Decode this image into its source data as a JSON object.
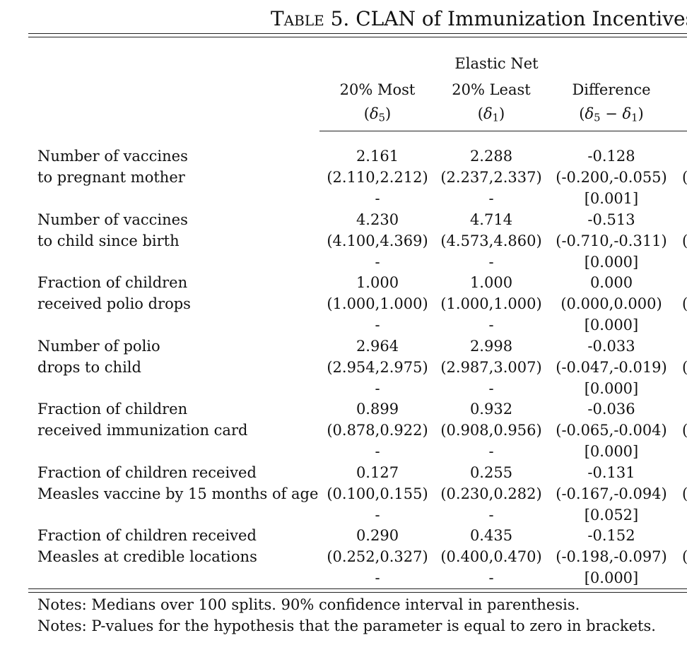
{
  "title": {
    "label": "Table 5.",
    "text": "CLAN of Immunization Incentives"
  },
  "header": {
    "group": "Elastic Net",
    "columns": [
      {
        "label": "20% Most",
        "delta": "δ",
        "sub": "5",
        "extra": ""
      },
      {
        "label": "20% Least",
        "delta": "δ",
        "sub": "1",
        "extra": ""
      },
      {
        "label": "Difference",
        "delta": "δ",
        "sub": "5",
        "extra": "δ",
        "extra_sub": "1"
      }
    ]
  },
  "rows": [
    {
      "label1": "Number of vaccines",
      "label2": "to pregnant mother",
      "most": {
        "est": "2.161",
        "ci": "(2.110,2.212)",
        "p": "-"
      },
      "least": {
        "est": "2.288",
        "ci": "(2.237,2.337)",
        "p": "-"
      },
      "diff": {
        "est": "-0.128",
        "ci": "(-0.200,-0.055)",
        "p": "[0.001]"
      }
    },
    {
      "label1": "Number of vaccines",
      "label2": "to child since birth",
      "most": {
        "est": "4.230",
        "ci": "(4.100,4.369)",
        "p": "-"
      },
      "least": {
        "est": "4.714",
        "ci": "(4.573,4.860)",
        "p": "-"
      },
      "diff": {
        "est": "-0.513",
        "ci": "(-0.710,-0.311)",
        "p": "[0.000]"
      }
    },
    {
      "label1": "Fraction of children",
      "label2": "received polio drops",
      "most": {
        "est": "1.000",
        "ci": "(1.000,1.000)",
        "p": "-"
      },
      "least": {
        "est": "1.000",
        "ci": "(1.000,1.000)",
        "p": "-"
      },
      "diff": {
        "est": "0.000",
        "ci": "(0.000,0.000)",
        "p": "[0.000]"
      }
    },
    {
      "label1": "Number of polio",
      "label2": "drops to child",
      "most": {
        "est": "2.964",
        "ci": "(2.954,2.975)",
        "p": "-"
      },
      "least": {
        "est": "2.998",
        "ci": "(2.987,3.007)",
        "p": "-"
      },
      "diff": {
        "est": "-0.033",
        "ci": "(-0.047,-0.019)",
        "p": "[0.000]"
      }
    },
    {
      "label1": "Fraction of children",
      "label2": "received immunization card",
      "most": {
        "est": "0.899",
        "ci": "(0.878,0.922)",
        "p": "-"
      },
      "least": {
        "est": "0.932",
        "ci": "(0.908,0.956)",
        "p": "-"
      },
      "diff": {
        "est": "-0.036",
        "ci": "(-0.065,-0.004)",
        "p": "[0.000]"
      }
    },
    {
      "label1": "Fraction of children received",
      "label2": "Measles vaccine by 15 months of age",
      "most": {
        "est": "0.127",
        "ci": "(0.100,0.155)",
        "p": "-"
      },
      "least": {
        "est": "0.255",
        "ci": "(0.230,0.282)",
        "p": "-"
      },
      "diff": {
        "est": "-0.131",
        "ci": "(-0.167,-0.094)",
        "p": "[0.052]"
      }
    },
    {
      "label1": "Fraction of children received",
      "label2": "Measles at credible locations",
      "most": {
        "est": "0.290",
        "ci": "(0.252,0.327)",
        "p": "-"
      },
      "least": {
        "est": "0.435",
        "ci": "(0.400,0.470)",
        "p": "-"
      },
      "diff": {
        "est": "-0.152",
        "ci": "(-0.198,-0.097)",
        "p": "[0.000]"
      }
    }
  ],
  "clipped_paren": "(",
  "notes": [
    "Notes: Medians over 100 splits. 90% confidence interval in parenthesis.",
    "Notes: P-values for the hypothesis that the parameter is equal to zero in brackets."
  ]
}
